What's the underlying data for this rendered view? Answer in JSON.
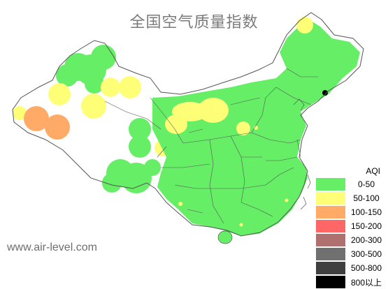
{
  "map": {
    "title": "全国空气质量指数",
    "watermark": "www.air-level.com"
  },
  "legend": {
    "header": "AQI",
    "items": [
      {
        "label": "0-50",
        "color": "#66ee66"
      },
      {
        "label": "50-100",
        "color": "#ffff77"
      },
      {
        "label": "100-150",
        "color": "#ffaa66"
      },
      {
        "label": "150-200",
        "color": "#ff6666"
      },
      {
        "label": "200-300",
        "color": "#b07070"
      },
      {
        "label": "300-500",
        "color": "#707070"
      },
      {
        "label": "500-800",
        "color": "#404040"
      },
      {
        "label": "800以上",
        "color": "#000000"
      }
    ]
  },
  "colors": {
    "good": "#66ee66",
    "moderate": "#ffff77",
    "sensitive": "#ffaa66",
    "border": "#555555",
    "background": "#ffffff"
  }
}
